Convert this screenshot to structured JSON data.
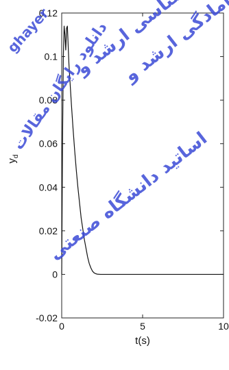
{
  "chart_data": {
    "type": "line",
    "xlabel": "t(s)",
    "ylabel": "y",
    "ylabel_subscript": "d",
    "xlim": [
      0,
      10
    ],
    "ylim": [
      -0.02,
      0.12
    ],
    "x_ticks": [
      0,
      5,
      10
    ],
    "x_tick_labels": [
      "0",
      "5",
      "10"
    ],
    "y_ticks": [
      -0.02,
      0,
      0.02,
      0.04,
      0.06,
      0.08,
      0.1,
      0.12
    ],
    "y_tick_labels": [
      "-0.02",
      "0",
      "0.02",
      "0.04",
      "0.06",
      "0.08",
      "0.1",
      "0.12"
    ],
    "grid": false,
    "series": [
      {
        "color": "#111111",
        "x": [
          0,
          0.05,
          0.1,
          0.15,
          0.2,
          0.25,
          0.3,
          0.35,
          0.4,
          0.45,
          0.5,
          0.55,
          0.6,
          0.7,
          0.8,
          0.9,
          1.0,
          1.1,
          1.2,
          1.3,
          1.4,
          1.5,
          1.6,
          1.7,
          1.8,
          1.9,
          2.0,
          2.1,
          2.2,
          2.4,
          2.6,
          3.0,
          4.0,
          5.0,
          6.0,
          8.0,
          10.0
        ],
        "y": [
          0,
          0.06,
          0.1,
          0.114,
          0.11,
          0.103,
          0.113,
          0.114,
          0.105,
          0.096,
          0.09,
          0.084,
          0.078,
          0.067,
          0.057,
          0.048,
          0.04,
          0.033,
          0.026,
          0.021,
          0.016,
          0.012,
          0.008,
          0.005,
          0.003,
          0.0015,
          0.0007,
          0.0003,
          0.0001,
          0,
          0,
          0,
          0,
          0,
          0,
          0,
          0
        ]
      }
    ]
  },
  "watermark": {
    "lines": [
      "دانلود رایگان مقالات",
      "کنکور کارشناسی ارشد و",
      "دکتری آمادگی ارشد و",
      "اساتید دانشگاه صنعتی"
    ],
    "latin": "ghayer",
    "color": "#3b4bd6"
  }
}
